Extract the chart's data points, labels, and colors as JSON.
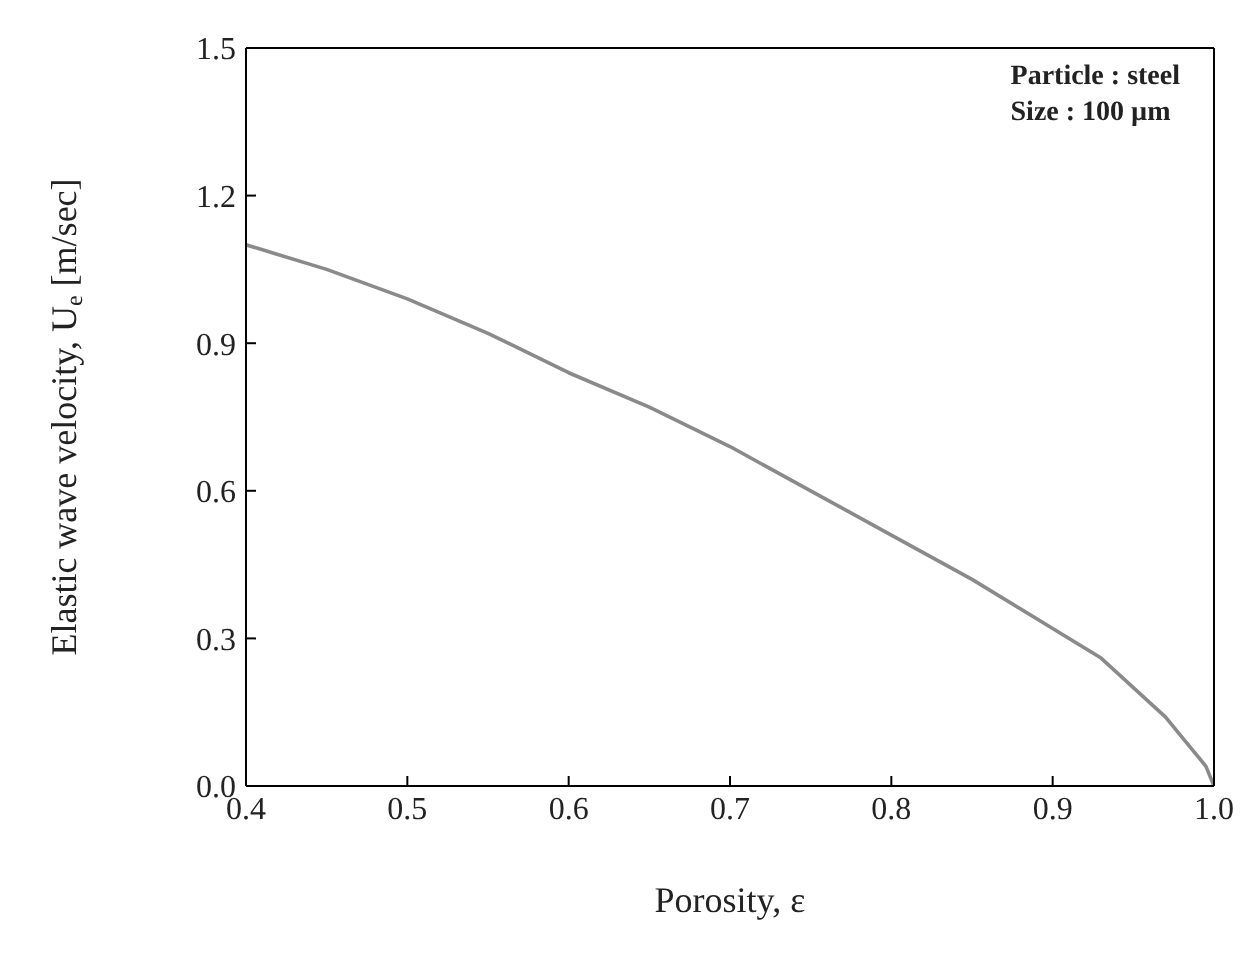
{
  "chart_data": {
    "type": "line",
    "xlabel": "Porosity, ε",
    "ylabel": "Elastic wave velocity, U$_{e}$ [m/sec]",
    "annotations": [
      "Particle : steel",
      "Size : 100 µm"
    ],
    "x": [
      0.4,
      0.45,
      0.5,
      0.55,
      0.6,
      0.65,
      0.7,
      0.75,
      0.8,
      0.85,
      0.9,
      0.93,
      0.95,
      0.97,
      0.98,
      0.99,
      0.995,
      1.0
    ],
    "series": [
      {
        "color": "#8a8a8a",
        "values": [
          1.1,
          1.05,
          0.99,
          0.92,
          0.84,
          0.77,
          0.69,
          0.6,
          0.51,
          0.42,
          0.32,
          0.26,
          0.2,
          0.14,
          0.1,
          0.06,
          0.04,
          0.0
        ]
      }
    ],
    "xlim": [
      0.4,
      1.0
    ],
    "xticks": [
      0.4,
      0.5,
      0.6,
      0.7,
      0.8,
      0.9,
      {
        "value": 1.0,
        "label": "1.0"
      }
    ],
    "ylim": [
      0,
      1.5
    ],
    "yticks": [
      {
        "value": 0,
        "label": "0.0"
      },
      0.3,
      0.6,
      0.9,
      1.2,
      1.5
    ],
    "grid": false,
    "legend": false,
    "marker": "none",
    "line_style": "solid"
  }
}
